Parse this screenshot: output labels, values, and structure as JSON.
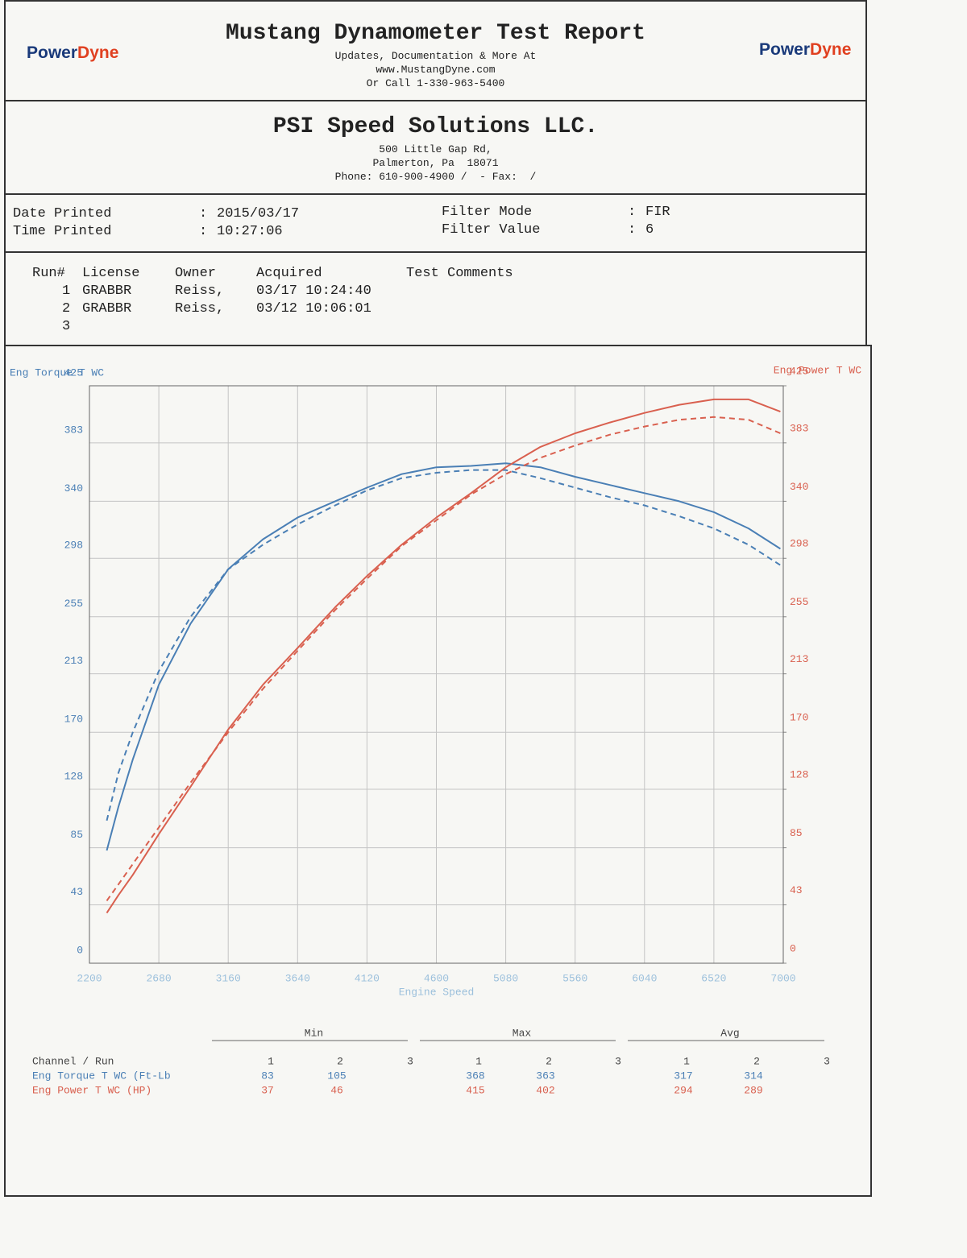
{
  "logo": [
    "Power",
    "Dyne"
  ],
  "header": {
    "title": "Mustang Dynamometer Test Report",
    "lines": [
      "Updates, Documentation & More At",
      "www.MustangDyne.com",
      "Or Call 1-330-963-5400"
    ]
  },
  "company": {
    "name": "PSI Speed Solutions LLC.",
    "lines": [
      "500 Little Gap Rd,",
      "Palmerton, Pa  18071",
      "Phone: 610-900-4900 /  - Fax:  /"
    ]
  },
  "info": {
    "sep": ":",
    "left": [
      {
        "label": "Date Printed",
        "value": "2015/03/17"
      },
      {
        "label": "Time Printed",
        "value": "10:27:06"
      }
    ],
    "right": [
      {
        "label": "Filter Mode",
        "value": "FIR"
      },
      {
        "label": "Filter Value",
        "value": "6"
      }
    ]
  },
  "runs": {
    "headers": [
      "Run#",
      "License",
      "Owner",
      "Acquired",
      "Test Comments"
    ],
    "rows": [
      [
        "1",
        "GRABBR",
        "Reiss,",
        "03/17 10:24:40"
      ],
      [
        "2",
        "GRABBR",
        "Reiss,",
        "03/12 10:06:01"
      ],
      [
        "3"
      ]
    ]
  },
  "chart_data": {
    "type": "line",
    "y_label": "Eng Torque T WC",
    "y2_label": "Eng Power T WC",
    "x_label": "Engine Speed",
    "x": [
      2320,
      2400,
      2500,
      2680,
      2900,
      3160,
      3400,
      3640,
      3900,
      4120,
      4360,
      4600,
      4840,
      5080,
      5320,
      5560,
      5800,
      6040,
      6280,
      6520,
      6760,
      6980
    ],
    "series": [
      {
        "color": "#4a7fb5",
        "dashed": false,
        "axis": "y",
        "values": [
          83,
          115,
          150,
          205,
          250,
          290,
          312,
          328,
          340,
          350,
          360,
          365,
          366,
          368,
          365,
          358,
          352,
          346,
          340,
          332,
          320,
          305
        ]
      },
      {
        "color": "#4a7fb5",
        "dashed": true,
        "axis": "y",
        "values": [
          105,
          140,
          170,
          215,
          255,
          290,
          308,
          323,
          337,
          348,
          357,
          361,
          363,
          363,
          357,
          350,
          343,
          337,
          329,
          320,
          308,
          293
        ]
      },
      {
        "color": "#d9604f",
        "dashed": false,
        "axis": "y2",
        "values": [
          37,
          50,
          65,
          95,
          130,
          172,
          205,
          232,
          262,
          285,
          308,
          328,
          346,
          365,
          380,
          390,
          398,
          405,
          411,
          415,
          415,
          406
        ]
      },
      {
        "color": "#d9604f",
        "dashed": true,
        "axis": "y2",
        "values": [
          46,
          58,
          73,
          100,
          133,
          170,
          202,
          230,
          260,
          283,
          307,
          326,
          345,
          360,
          372,
          381,
          389,
          395,
          400,
          402,
          400,
          390
        ]
      }
    ],
    "xlim": [
      2200,
      7000
    ],
    "xticks": [
      2200,
      2680,
      3160,
      3640,
      4120,
      4600,
      5080,
      5560,
      6040,
      6520,
      7000
    ],
    "ylim": [
      0,
      425
    ],
    "yticks": [
      0,
      43,
      85,
      128,
      170,
      213,
      255,
      298,
      340,
      383,
      425
    ],
    "y2lim": [
      0,
      425
    ],
    "y2ticks": [
      0,
      43,
      85,
      128,
      170,
      213,
      255,
      298,
      340,
      383,
      425
    ],
    "grid": true,
    "y_color": "#4a7fb5",
    "y2_color": "#d9604f"
  },
  "stats": {
    "groups": [
      "Min",
      "Max",
      "Avg"
    ],
    "runs": [
      1,
      2,
      3
    ],
    "channel_header": "Channel / Run",
    "rows": [
      {
        "channel": "Eng Torque T WC (Ft-Lb",
        "color": "#4a7fb5",
        "min": [
          83,
          105
        ],
        "max": [
          368,
          363
        ],
        "avg": [
          317,
          314
        ]
      },
      {
        "channel": "Eng Power T WC (HP)",
        "color": "#d9604f",
        "min": [
          37,
          46
        ],
        "max": [
          415,
          402
        ],
        "avg": [
          294,
          289
        ]
      }
    ]
  }
}
